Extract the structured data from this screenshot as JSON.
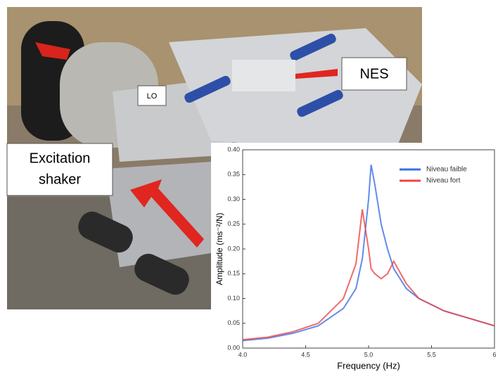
{
  "labels": {
    "lo": "LO",
    "nes": "NES",
    "excitation": [
      "Excitation",
      "shaker"
    ]
  },
  "chart_data": {
    "type": "line",
    "x_label": "Frequency (Hz)",
    "y_label": "Amplitude (ms⁻²/N)",
    "x": [
      4.0,
      4.2,
      4.4,
      4.6,
      4.8,
      4.9,
      4.95,
      5.0,
      5.02,
      5.05,
      5.1,
      5.15,
      5.2,
      5.3,
      5.4,
      5.6,
      5.8,
      6.0
    ],
    "series": [
      {
        "name": "Niveau faible",
        "color": "#3a6ee8",
        "values": [
          0.015,
          0.02,
          0.03,
          0.045,
          0.08,
          0.12,
          0.18,
          0.3,
          0.37,
          0.33,
          0.25,
          0.2,
          0.16,
          0.12,
          0.1,
          0.075,
          0.06,
          0.045
        ]
      },
      {
        "name": "Niveau fort",
        "color": "#ee4444",
        "values": [
          0.017,
          0.022,
          0.033,
          0.05,
          0.1,
          0.17,
          0.28,
          0.2,
          0.16,
          0.15,
          0.14,
          0.15,
          0.175,
          0.13,
          0.1,
          0.075,
          0.06,
          0.045
        ]
      }
    ],
    "xlim": [
      4,
      6
    ],
    "xticks": [
      {
        "value": 4,
        "label": "4.0"
      },
      4.5,
      {
        "value": 5,
        "label": "5.0"
      },
      5.5,
      6
    ],
    "ylim": [
      0,
      0.4
    ],
    "yticks": [
      {
        "value": 0,
        "label": "0.00"
      },
      0.05,
      {
        "value": 0.1,
        "label": "0.10"
      },
      0.15,
      {
        "value": 0.2,
        "label": "0.20"
      },
      0.25,
      {
        "value": 0.3,
        "label": "0.30"
      },
      0.35,
      {
        "value": 0.4,
        "label": "0.40"
      }
    ],
    "legend": "upper right"
  }
}
